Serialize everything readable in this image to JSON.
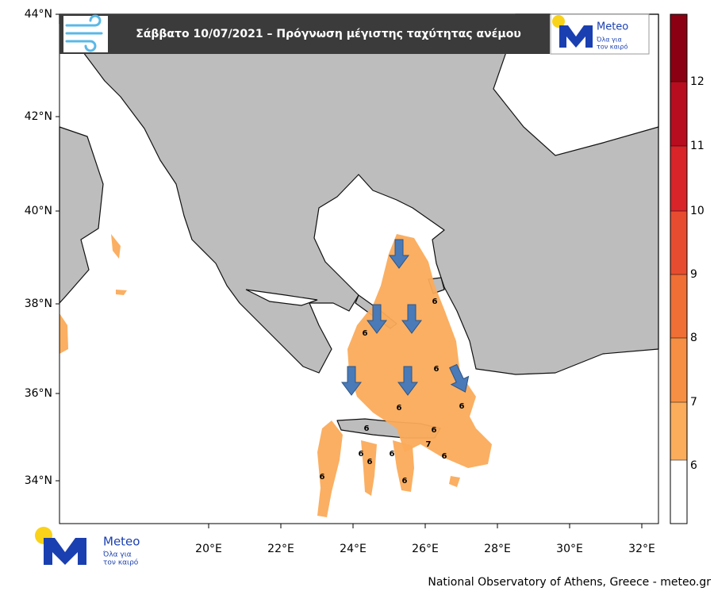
{
  "header": {
    "title": "Σάββατο 10/07/2021 – Πρόγνωση μέγιστης ταχύτητας ανέμου"
  },
  "logo": {
    "name": "Meteo",
    "tagline_1": "Όλα για",
    "tagline_2": "τον καιρό"
  },
  "map": {
    "lat_labels": [
      "44°N",
      "42°N",
      "40°N",
      "38°N",
      "36°N",
      "34°N"
    ],
    "lon_labels": [
      "20°E",
      "22°E",
      "24°E",
      "26°E",
      "28°E",
      "30°E",
      "32°E"
    ],
    "contour_labels": [
      "6",
      "6",
      "6",
      "6",
      "6",
      "6",
      "6",
      "6",
      "6",
      "7",
      "6",
      "6",
      "6",
      "6"
    ]
  },
  "colorbar": {
    "labels": [
      "12",
      "11",
      "10",
      "9",
      "8",
      "7",
      "6"
    ],
    "colors": [
      "#8b0012",
      "#b80d1f",
      "#d9242a",
      "#e84c30",
      "#f06f35",
      "#f68f43",
      "#fbad5c",
      "#ffffff"
    ]
  },
  "footer": {
    "credit": "National Observatory of Athens, Greece - meteo.gr"
  }
}
